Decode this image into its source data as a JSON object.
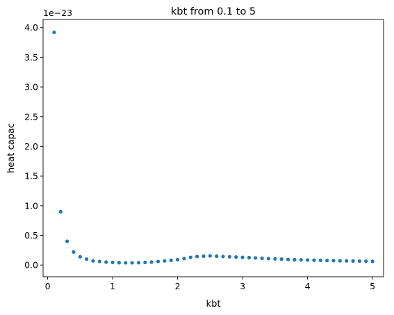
{
  "chart_data": {
    "type": "scatter",
    "title": "kbt from 0.1 to 5",
    "xlabel": "kbt",
    "ylabel": "heat capac",
    "y_offset_label": "1e−23",
    "xlim": [
      -0.07,
      5.17
    ],
    "ylim": [
      -0.197,
      4.137
    ],
    "x_ticks": [
      0,
      1,
      2,
      3,
      4,
      5
    ],
    "y_ticks": [
      0.0,
      0.5,
      1.0,
      1.5,
      2.0,
      2.5,
      3.0,
      3.5,
      4.0
    ],
    "x_tick_labels": [
      "0",
      "1",
      "2",
      "3",
      "4",
      "5"
    ],
    "y_tick_labels": [
      "0.0",
      "0.5",
      "1.0",
      "1.5",
      "2.0",
      "2.5",
      "3.0",
      "3.5",
      "4.0"
    ],
    "grid": false,
    "marker_color": "#1f77b4",
    "series": [
      {
        "x": [
          0.1,
          0.2,
          0.3,
          0.4,
          0.5,
          0.6,
          0.7,
          0.8,
          0.9,
          1.0,
          1.1,
          1.2,
          1.3,
          1.4,
          1.5,
          1.6,
          1.7,
          1.8,
          1.9,
          2.0,
          2.1,
          2.2,
          2.3,
          2.4,
          2.5,
          2.6,
          2.7,
          2.8,
          2.9,
          3.0,
          3.1,
          3.2,
          3.3,
          3.4,
          3.5,
          3.6,
          3.7,
          3.8,
          3.9,
          4.0,
          4.1,
          4.2,
          4.3,
          4.4,
          4.5,
          4.6,
          4.7,
          4.8,
          4.9,
          5.0
        ],
        "y": [
          3.92,
          0.9,
          0.4,
          0.22,
          0.14,
          0.1,
          0.07,
          0.06,
          0.05,
          0.045,
          0.04,
          0.038,
          0.038,
          0.04,
          0.045,
          0.05,
          0.06,
          0.07,
          0.08,
          0.09,
          0.11,
          0.13,
          0.145,
          0.15,
          0.155,
          0.15,
          0.145,
          0.14,
          0.135,
          0.13,
          0.125,
          0.12,
          0.115,
          0.11,
          0.105,
          0.1,
          0.095,
          0.09,
          0.088,
          0.085,
          0.082,
          0.08,
          0.077,
          0.075,
          0.072,
          0.07,
          0.068,
          0.066,
          0.064,
          0.062
        ]
      }
    ]
  }
}
